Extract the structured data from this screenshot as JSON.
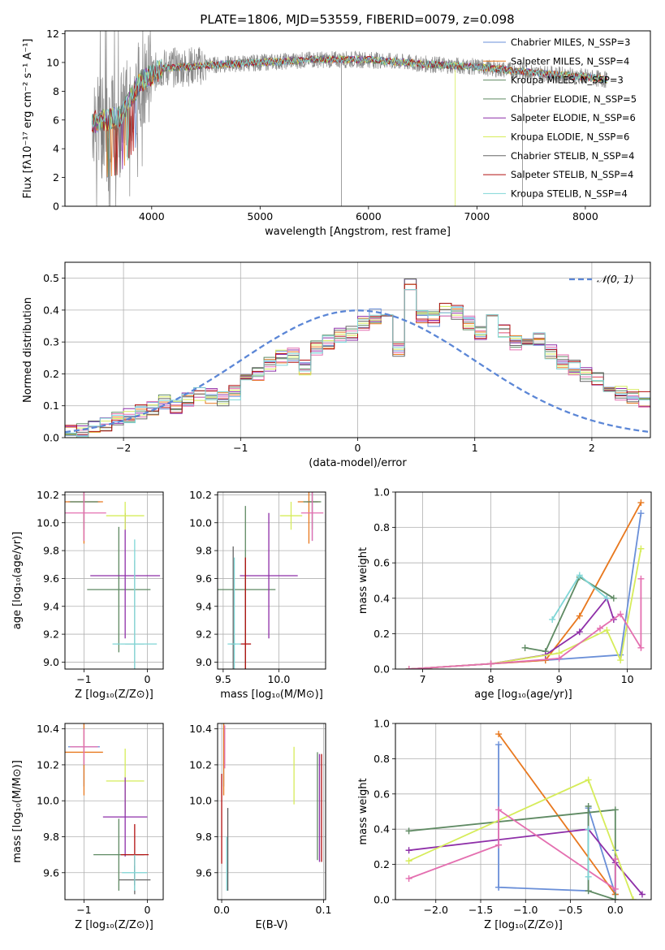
{
  "figure_title": "PLATE=1806, MJD=53559, FIBERID=0079, z=0.098",
  "colors": {
    "c1": "#6a8fd8",
    "c2": "#e8781e",
    "c3": "#5f8a63",
    "c4": "#8e2fa8",
    "c5": "#d6ec5a",
    "c6": "#e46fb0",
    "c7": "#666666",
    "c8": "#b21010",
    "c9": "#7fd6d6",
    "data": "#888888",
    "gauss": "#5b86d6"
  },
  "chart_data": [
    {
      "id": "spectrum",
      "type": "line",
      "title": "PLATE=1806, MJD=53559, FIBERID=0079, z=0.098",
      "xlabel": "wavelength [Angstrom, rest frame]",
      "ylabel": "Flux [fλ10⁻¹⁷ erg cm⁻² s⁻¹ A⁻¹]",
      "xlim": [
        3200,
        8600
      ],
      "ylim": [
        0,
        12.2
      ],
      "xticks": [
        4000,
        5000,
        6000,
        7000,
        8000
      ],
      "yticks": [
        0,
        2,
        4,
        6,
        8,
        10,
        12
      ],
      "continuum": {
        "x": [
          3450,
          3700,
          3900,
          4100,
          4500,
          5000,
          5500,
          6000,
          6500,
          7000,
          7500,
          8000,
          8200
        ],
        "y": [
          5.8,
          6.2,
          8.7,
          9.6,
          9.8,
          10.0,
          10.2,
          10.2,
          9.9,
          9.7,
          9.3,
          9.0,
          8.8
        ]
      },
      "legend": [
        {
          "name": "Chabrier MILES, N_SSP=3",
          "color": "#6a8fd8"
        },
        {
          "name": "Salpeter MILES, N_SSP=4",
          "color": "#e8781e"
        },
        {
          "name": "Kroupa MILES, N_SSP=3",
          "color": "#5f8a63"
        },
        {
          "name": "Chabrier ELODIE, N_SSP=5",
          "color": "#5f8a63"
        },
        {
          "name": "Salpeter ELODIE, N_SSP=6",
          "color": "#8e2fa8"
        },
        {
          "name": "Kroupa ELODIE, N_SSP=6",
          "color": "#d6ec5a"
        },
        {
          "name": "Chabrier STELIB, N_SSP=4",
          "color": "#666666"
        },
        {
          "name": "Salpeter STELIB, N_SSP=4",
          "color": "#b21010"
        },
        {
          "name": "Kroupa STELIB, N_SSP=4",
          "color": "#7fd6d6"
        }
      ],
      "legend_placement": "upper right",
      "grid": false
    },
    {
      "id": "residuals",
      "type": "histogram",
      "xlabel": "(data-model)/error",
      "ylabel": "Normed distribution",
      "xlim": [
        -2.5,
        2.5
      ],
      "ylim": [
        0,
        0.55
      ],
      "xticks": [
        -2,
        -1,
        0,
        1,
        2
      ],
      "yticks": [
        0.0,
        0.1,
        0.2,
        0.3,
        0.4,
        0.5
      ],
      "bin_width": 0.1,
      "bin_start": -2.5,
      "heights": [
        0.02,
        0.025,
        0.03,
        0.045,
        0.055,
        0.07,
        0.08,
        0.09,
        0.11,
        0.1,
        0.12,
        0.14,
        0.13,
        0.12,
        0.14,
        0.18,
        0.2,
        0.23,
        0.25,
        0.26,
        0.22,
        0.28,
        0.3,
        0.32,
        0.33,
        0.36,
        0.38,
        0.4,
        0.28,
        0.48,
        0.38,
        0.37,
        0.4,
        0.39,
        0.36,
        0.33,
        0.38,
        0.34,
        0.3,
        0.29,
        0.31,
        0.27,
        0.24,
        0.22,
        0.2,
        0.18,
        0.16,
        0.14,
        0.13,
        0.12,
        0.1,
        0.09,
        0.08,
        0.07,
        0.06,
        0.05,
        0.05,
        0.04,
        0.04,
        0.05,
        0.05
      ],
      "legend": [
        {
          "name": "𝒩(0, 1)",
          "color": "#5b86d6"
        }
      ],
      "legend_placement": "upper right",
      "grid": true
    },
    {
      "id": "age_vs_Z",
      "type": "errorbar",
      "xlabel": "Z [log₁₀(Z/Z⊙)]",
      "ylabel": "age  [log₁₀(age/yr)]",
      "xlim": [
        -1.3,
        0.25
      ],
      "ylim": [
        8.95,
        10.22
      ],
      "xticks": [
        -1,
        0
      ],
      "yticks": [
        9.0,
        9.2,
        9.4,
        9.6,
        9.8,
        10.0,
        10.2
      ],
      "points": [
        {
          "x": -1.0,
          "y": 10.15,
          "xerr": 0.25,
          "yerr": 0.28,
          "color": "#6a8fd8"
        },
        {
          "x": -1.0,
          "y": 10.15,
          "xerr": 0.3,
          "yerr": 0.3,
          "color": "#e8781e"
        },
        {
          "x": -1.0,
          "y": 10.15,
          "xerr": 0.22,
          "yerr": 0.2,
          "color": "#5f8a63"
        },
        {
          "x": -0.45,
          "y": 9.52,
          "xerr": 0.5,
          "yerr": 0.45,
          "color": "#5f8a63"
        },
        {
          "x": -0.35,
          "y": 9.62,
          "xerr": 0.55,
          "yerr": 0.45,
          "color": "#8e2fa8"
        },
        {
          "x": -0.35,
          "y": 10.05,
          "xerr": 0.3,
          "yerr": 0.1,
          "color": "#d6ec5a"
        },
        {
          "x": -1.0,
          "y": 10.07,
          "xerr": 0.35,
          "yerr": 0.2,
          "color": "#e46fb0"
        },
        {
          "x": -0.2,
          "y": 9.13,
          "xerr": 0.15,
          "yerr": 0.6,
          "color": "#b0b0b0"
        },
        {
          "x": -0.2,
          "y": 9.13,
          "xerr": 0.35,
          "yerr": 0.75,
          "color": "#7fd6d6"
        }
      ],
      "grid": true
    },
    {
      "id": "age_vs_mass",
      "type": "errorbar",
      "xlabel": "mass [log₁₀(M/M⊙)]",
      "ylabel": "",
      "xlim": [
        9.45,
        10.42
      ],
      "ylim": [
        8.95,
        10.22
      ],
      "xticks": [
        9.5,
        10.0
      ],
      "yticks": [
        9.0,
        9.2,
        9.4,
        9.6,
        9.8,
        10.0,
        10.2
      ],
      "points": [
        {
          "x": 10.3,
          "y": 10.15,
          "xerr": 0.05,
          "yerr": 0.28,
          "color": "#6a8fd8"
        },
        {
          "x": 10.27,
          "y": 10.15,
          "xerr": 0.1,
          "yerr": 0.3,
          "color": "#e8781e"
        },
        {
          "x": 10.3,
          "y": 10.15,
          "xerr": 0.08,
          "yerr": 0.2,
          "color": "#5f8a63"
        },
        {
          "x": 9.7,
          "y": 9.52,
          "xerr": 0.27,
          "yerr": 0.6,
          "color": "#5f8a63"
        },
        {
          "x": 9.91,
          "y": 9.62,
          "xerr": 0.26,
          "yerr": 0.45,
          "color": "#8e2fa8"
        },
        {
          "x": 10.11,
          "y": 10.05,
          "xerr": 0.1,
          "yerr": 0.1,
          "color": "#d6ec5a"
        },
        {
          "x": 10.3,
          "y": 10.07,
          "xerr": 0.1,
          "yerr": 0.2,
          "color": "#e46fb0"
        },
        {
          "x": 9.59,
          "y": 9.13,
          "xerr": 0.02,
          "yerr": 0.7,
          "color": "#666666"
        },
        {
          "x": 9.7,
          "y": 9.13,
          "xerr": 0.05,
          "yerr": 0.62,
          "color": "#b21010"
        },
        {
          "x": 9.6,
          "y": 9.13,
          "xerr": 0.06,
          "yerr": 0.62,
          "color": "#7fd6d6"
        }
      ],
      "grid": true
    },
    {
      "id": "mass_weight_vs_age",
      "type": "line",
      "xlabel": "age  [log₁₀(age/yr)]",
      "ylabel": "mass weight",
      "xlim": [
        6.6,
        10.35
      ],
      "ylim": [
        0,
        1.0
      ],
      "xticks": [
        7,
        8,
        9,
        10
      ],
      "yticks": [
        0.0,
        0.2,
        0.4,
        0.6,
        0.8,
        1.0
      ],
      "series": [
        {
          "color": "#6a8fd8",
          "x": [
            6.8,
            8.0,
            8.8,
            9.9,
            10.2
          ],
          "y": [
            0.0,
            0.03,
            0.05,
            0.08,
            0.88
          ]
        },
        {
          "color": "#e8781e",
          "x": [
            6.8,
            8.0,
            8.8,
            9.3,
            10.2
          ],
          "y": [
            0.0,
            0.03,
            0.05,
            0.3,
            0.94
          ]
        },
        {
          "color": "#5f8a63",
          "x": [
            8.5,
            8.8,
            9.3,
            9.8
          ],
          "y": [
            0.12,
            0.1,
            0.52,
            0.4
          ]
        },
        {
          "color": "#8e2fa8",
          "x": [
            6.8,
            8.0,
            8.8,
            9.3,
            9.7,
            9.8
          ],
          "y": [
            0.0,
            0.03,
            0.08,
            0.21,
            0.4,
            0.28
          ]
        },
        {
          "color": "#d6ec5a",
          "x": [
            6.8,
            8.0,
            9.0,
            9.7,
            9.9,
            10.2
          ],
          "y": [
            0.0,
            0.03,
            0.09,
            0.22,
            0.05,
            0.68
          ]
        },
        {
          "color": "#e46fb0",
          "x": [
            6.8,
            8.0,
            9.0,
            9.6,
            9.9,
            10.2,
            10.2
          ],
          "y": [
            0.0,
            0.03,
            0.06,
            0.23,
            0.31,
            0.12,
            0.51
          ]
        },
        {
          "color": "#7fd6d6",
          "x": [
            8.9,
            9.3,
            9.7
          ],
          "y": [
            0.28,
            0.53,
            0.4
          ]
        }
      ],
      "grid": true
    },
    {
      "id": "mass_vs_Z",
      "type": "errorbar",
      "xlabel": "Z [log₁₀(Z/Z⊙)]",
      "ylabel": "mass [log₁₀(M/M⊙)]",
      "xlim": [
        -1.3,
        0.25
      ],
      "ylim": [
        9.45,
        10.43
      ],
      "xticks": [
        -1,
        0
      ],
      "yticks": [
        9.6,
        9.8,
        10.0,
        10.2,
        10.4
      ],
      "points": [
        {
          "x": -1.0,
          "y": 10.3,
          "xerr": 0.25,
          "yerr": 0.22,
          "color": "#6a8fd8"
        },
        {
          "x": -1.0,
          "y": 10.27,
          "xerr": 0.3,
          "yerr": 0.24,
          "color": "#e8781e"
        },
        {
          "x": -1.0,
          "y": 10.3,
          "xerr": 0.22,
          "yerr": 0.1,
          "color": "#e46fb0"
        },
        {
          "x": -0.35,
          "y": 10.11,
          "xerr": 0.3,
          "yerr": 0.18,
          "color": "#d6ec5a"
        },
        {
          "x": -0.35,
          "y": 9.91,
          "xerr": 0.35,
          "yerr": 0.22,
          "color": "#8e2fa8"
        },
        {
          "x": -0.45,
          "y": 9.7,
          "xerr": 0.4,
          "yerr": 0.2,
          "color": "#5f8a63"
        },
        {
          "x": -0.2,
          "y": 9.7,
          "xerr": 0.22,
          "yerr": 0.17,
          "color": "#b21010"
        },
        {
          "x": -0.2,
          "y": 9.56,
          "xerr": 0.25,
          "yerr": 0.08,
          "color": "#666666"
        },
        {
          "x": -0.2,
          "y": 9.6,
          "xerr": 0.2,
          "yerr": 0.1,
          "color": "#7fd6d6"
        }
      ],
      "grid": true
    },
    {
      "id": "mass_vs_EBV",
      "type": "errorbar",
      "xlabel": "E(B-V)",
      "ylabel": "",
      "xlim": [
        -0.004,
        0.102
      ],
      "ylim": [
        9.45,
        10.43
      ],
      "xticks": [
        0.0,
        0.1
      ],
      "yticks": [
        9.6,
        9.8,
        10.0,
        10.2,
        10.4
      ],
      "points": [
        {
          "x": 0.002,
          "y": 10.3,
          "xerr": 0,
          "yerr": 0.22,
          "color": "#6a8fd8"
        },
        {
          "x": 0.002,
          "y": 10.27,
          "xerr": 0,
          "yerr": 0.24,
          "color": "#e8781e"
        },
        {
          "x": 0.003,
          "y": 10.3,
          "xerr": 0,
          "yerr": 0.12,
          "color": "#e46fb0"
        },
        {
          "x": 0.0,
          "y": 9.9,
          "xerr": 0,
          "yerr": 0.25,
          "color": "#b21010"
        },
        {
          "x": 0.006,
          "y": 9.73,
          "xerr": 0,
          "yerr": 0.23,
          "color": "#5b5b5b"
        },
        {
          "x": 0.005,
          "y": 9.65,
          "xerr": 0,
          "yerr": 0.15,
          "color": "#7fd6d6"
        },
        {
          "x": 0.071,
          "y": 10.14,
          "xerr": 0,
          "yerr": 0.16,
          "color": "#d6ec5a"
        },
        {
          "x": 0.094,
          "y": 9.97,
          "xerr": 0,
          "yerr": 0.3,
          "color": "#5f8a63"
        },
        {
          "x": 0.096,
          "y": 9.96,
          "xerr": 0,
          "yerr": 0.3,
          "color": "#8e2fa8"
        },
        {
          "x": 0.098,
          "y": 9.96,
          "xerr": 0,
          "yerr": 0.3,
          "color": "#b21010"
        }
      ],
      "grid": true
    },
    {
      "id": "mass_weight_vs_Z",
      "type": "line",
      "xlabel": "Z [log₁₀(Z/Z⊙)]",
      "ylabel": "mass weight",
      "xlim": [
        -2.45,
        0.4
      ],
      "ylim": [
        0,
        1.0
      ],
      "xticks": [
        -2.0,
        -1.5,
        -1.0,
        -0.5,
        0.0
      ],
      "yticks": [
        0.0,
        0.2,
        0.4,
        0.6,
        0.8,
        1.0
      ],
      "series": [
        {
          "color": "#6a8fd8",
          "x": [
            -1.3,
            -1.3,
            -1.3,
            -0.3,
            -0.3,
            0.0,
            0.0
          ],
          "y": [
            0.88,
            0.07,
            0.07,
            0.05,
            0.52,
            0.03,
            0.28
          ]
        },
        {
          "color": "#e8781e",
          "x": [
            -1.3,
            0.0
          ],
          "y": [
            0.94,
            0.03
          ]
        },
        {
          "color": "#5f8a63",
          "x": [
            -2.3,
            0.0,
            0.0,
            -0.3,
            -0.3
          ],
          "y": [
            0.39,
            0.51,
            0.0,
            0.05,
            0.53
          ]
        },
        {
          "color": "#8e2fa8",
          "x": [
            -2.3,
            -0.3,
            0.0,
            0.3
          ],
          "y": [
            0.28,
            0.4,
            0.21,
            0.03
          ]
        },
        {
          "color": "#d6ec5a",
          "x": [
            -2.3,
            -0.3,
            0.2
          ],
          "y": [
            0.22,
            0.68,
            0.0
          ]
        },
        {
          "color": "#e46fb0",
          "x": [
            -2.3,
            -1.3,
            -1.3,
            0.0,
            0.0
          ],
          "y": [
            0.12,
            0.31,
            0.51,
            0.06,
            0.23
          ]
        },
        {
          "color": "#7fd6d6",
          "x": [
            -0.3,
            -0.3
          ],
          "y": [
            0.4,
            0.13
          ]
        }
      ],
      "grid": true
    }
  ]
}
